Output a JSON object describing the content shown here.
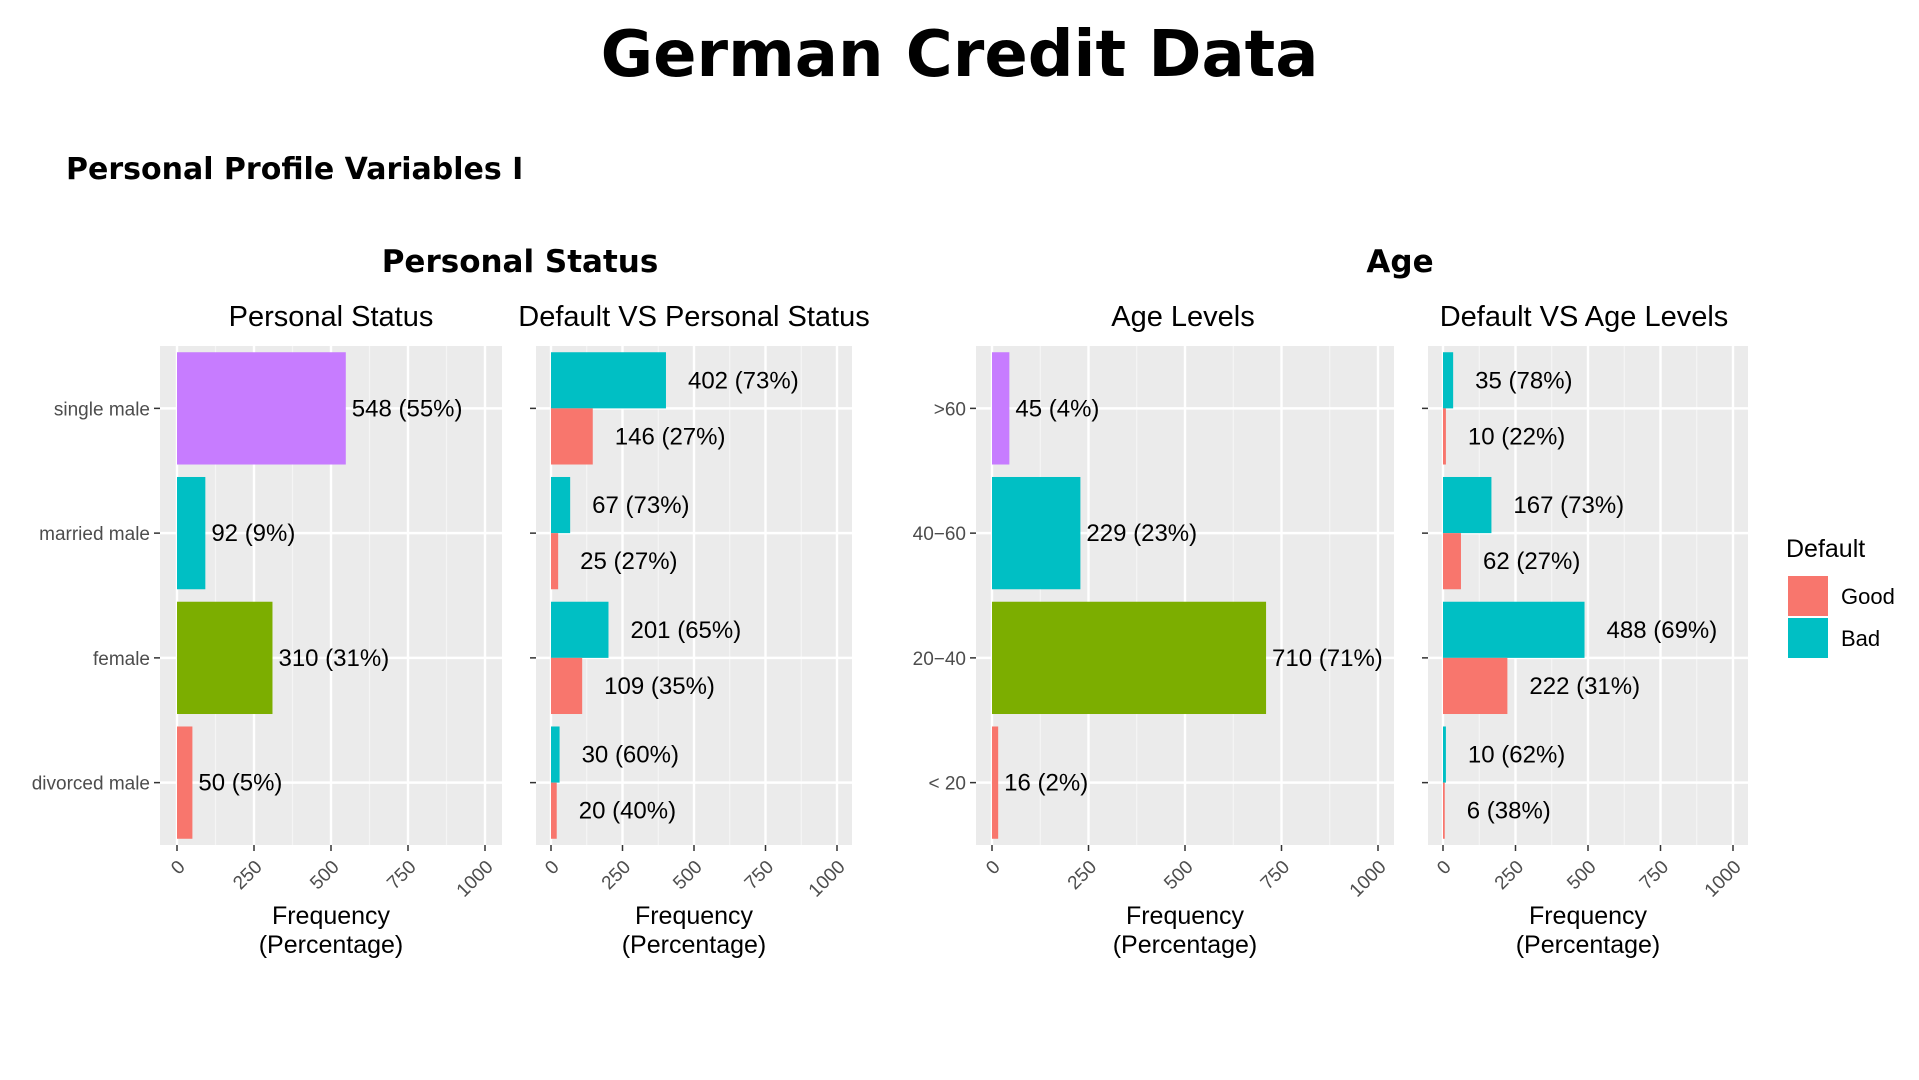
{
  "title": "German Credit Data",
  "subtitle": "Personal Profile Variables I",
  "groups": [
    {
      "title": "Personal Status"
    },
    {
      "title": "Age"
    }
  ],
  "legend": {
    "title": "Default",
    "items": [
      {
        "label": "Good",
        "color": "#F8766D"
      },
      {
        "label": "Bad",
        "color": "#00BFC4"
      }
    ]
  },
  "chart_data": [
    {
      "type": "bar",
      "orientation": "horizontal",
      "title": "Personal Status",
      "xlabel": "Frequency\n(Percentage)",
      "ylabel": "",
      "xlim": [
        0,
        1000
      ],
      "xticks": [
        0,
        250,
        500,
        750,
        1000
      ],
      "grid": true,
      "categories": [
        "single male",
        "married male",
        "female",
        "divorced male"
      ],
      "values": [
        548,
        92,
        310,
        50
      ],
      "labels": [
        "548 (55%)",
        "92 (9%)",
        "310 (31%)",
        "50 (5%)"
      ],
      "colors": [
        "#C77CFF",
        "#00BFC4",
        "#7CAE00",
        "#F8766D"
      ]
    },
    {
      "type": "bar",
      "orientation": "horizontal",
      "title": "Default VS Personal Status",
      "xlabel": "Frequency\n(Percentage)",
      "ylabel": "",
      "xlim": [
        0,
        1000
      ],
      "xticks": [
        0,
        250,
        500,
        750,
        1000
      ],
      "grid": true,
      "categories": [
        "single male",
        "married male",
        "female",
        "divorced male"
      ],
      "series": [
        {
          "name": "Bad",
          "color": "#00BFC4",
          "values": [
            402,
            67,
            201,
            30
          ],
          "labels": [
            "402 (73%)",
            "67 (73%)",
            "201 (65%)",
            "30 (60%)"
          ]
        },
        {
          "name": "Good",
          "color": "#F8766D",
          "values": [
            146,
            25,
            109,
            20
          ],
          "labels": [
            "146 (27%)",
            "25 (27%)",
            "109 (35%)",
            "20 (40%)"
          ]
        }
      ]
    },
    {
      "type": "bar",
      "orientation": "horizontal",
      "title": "Age Levels",
      "xlabel": "Frequency\n(Percentage)",
      "ylabel": "",
      "xlim": [
        0,
        1000
      ],
      "xticks": [
        0,
        250,
        500,
        750,
        1000
      ],
      "grid": true,
      "categories": [
        ">60",
        "40−60",
        "20−40",
        "< 20"
      ],
      "values": [
        45,
        229,
        710,
        16
      ],
      "labels": [
        "45 (4%)",
        "229 (23%)",
        "710 (71%)",
        "16 (2%)"
      ],
      "colors": [
        "#C77CFF",
        "#00BFC4",
        "#7CAE00",
        "#F8766D"
      ]
    },
    {
      "type": "bar",
      "orientation": "horizontal",
      "title": "Default VS Age Levels",
      "xlabel": "Frequency\n(Percentage)",
      "ylabel": "",
      "xlim": [
        0,
        1000
      ],
      "xticks": [
        0,
        250,
        500,
        750,
        1000
      ],
      "grid": true,
      "categories": [
        ">60",
        "40−60",
        "20−40",
        "< 20"
      ],
      "series": [
        {
          "name": "Bad",
          "color": "#00BFC4",
          "values": [
            35,
            167,
            488,
            10
          ],
          "labels": [
            "35 (78%)",
            "167 (73%)",
            "488 (69%)",
            "10 (62%)"
          ]
        },
        {
          "name": "Good",
          "color": "#F8766D",
          "values": [
            10,
            62,
            222,
            6
          ],
          "labels": [
            "10 (22%)",
            "62 (27%)",
            "222 (31%)",
            "6 (38%)"
          ]
        }
      ]
    }
  ]
}
